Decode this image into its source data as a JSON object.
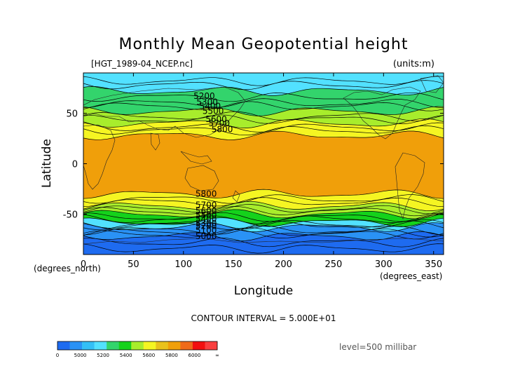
{
  "chart_data": {
    "type": "heatmap",
    "title": "Monthly Mean Geopotential height",
    "subtitle_left": "[HGT_1989-04_NCEP.nc]",
    "subtitle_right": "(units:m)",
    "xlabel": "Longitude",
    "ylabel": "Latitude",
    "x_unit_label": "(degrees_east)",
    "y_unit_label": "(degrees_north)",
    "xlim": [
      0,
      360
    ],
    "ylim": [
      -90,
      90
    ],
    "x_ticks": [
      0,
      50,
      100,
      150,
      200,
      250,
      300,
      350
    ],
    "y_ticks": [
      50,
      0,
      -50
    ],
    "contour_interval_text": "CONTOUR INTERVAL = 5.000E+01",
    "level_text": "level=500 millibar",
    "contour_labels": [
      "5200",
      "5300",
      "5400",
      "5500",
      "5600",
      "5700",
      "5800",
      "5800",
      "5700",
      "5600",
      "5500",
      "5400",
      "5300",
      "5200",
      "5100",
      "5000"
    ],
    "colorbar": {
      "tick_labels": [
        "0",
        "5000",
        "5200",
        "5400",
        "5600",
        "5800",
        "6000",
        "∞"
      ],
      "boundaries": [
        0,
        5000,
        5100,
        5200,
        5300,
        5400,
        5500,
        5600,
        5700,
        5800,
        5900,
        6000,
        6100
      ],
      "colors": [
        "#1e6bf0",
        "#2a92f5",
        "#33bff6",
        "#52e1ff",
        "#33d46c",
        "#14d21b",
        "#a8ed2c",
        "#f5f522",
        "#e9c21c",
        "#f09f0a",
        "#ef6a1a",
        "#f20f0f",
        "#f93e3e"
      ]
    },
    "bands": [
      {
        "lat_north": 90,
        "lat_south": 72,
        "value_range": "5300-5400",
        "color": "#52e1ff"
      },
      {
        "lat_north": 72,
        "lat_south": 52,
        "value_range": "5400-5500",
        "color": "#33d46c"
      },
      {
        "lat_north": 52,
        "lat_south": 40,
        "value_range": "5600-5700",
        "color": "#a8ed2c"
      },
      {
        "lat_north": 40,
        "lat_south": 28,
        "value_range": "5700-5800",
        "color": "#f5f522"
      },
      {
        "lat_north": 28,
        "lat_south": -30,
        "value_range": "5800-5900",
        "color": "#f09f0a"
      },
      {
        "lat_north": -30,
        "lat_south": -42,
        "value_range": "5700-5800",
        "color": "#f5f522"
      },
      {
        "lat_north": -42,
        "lat_south": -50,
        "value_range": "5600-5700",
        "color": "#a8ed2c"
      },
      {
        "lat_north": -50,
        "lat_south": -58,
        "value_range": "5400-5600",
        "color": "#14d21b"
      },
      {
        "lat_north": -58,
        "lat_south": -63,
        "value_range": "5300-5400",
        "color": "#52e1ff"
      },
      {
        "lat_north": -63,
        "lat_south": -72,
        "value_range": "5100-5300",
        "color": "#2a92f5"
      },
      {
        "lat_north": -72,
        "lat_south": -90,
        "value_range": "5000-5100",
        "color": "#1e6bf0"
      }
    ]
  }
}
